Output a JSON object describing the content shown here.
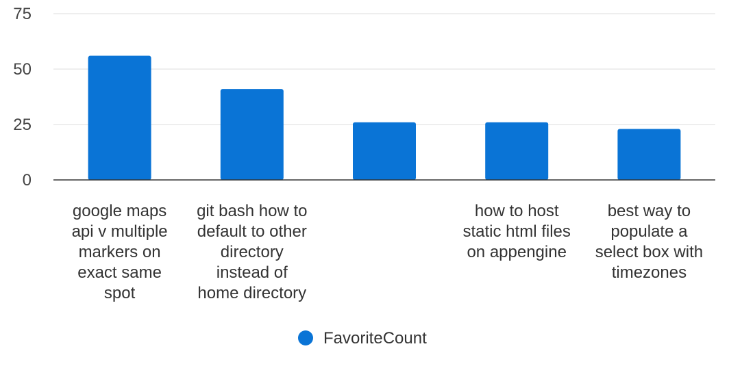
{
  "chart_data": {
    "type": "bar",
    "categories": [
      [
        "google maps",
        "api v multiple",
        "markers on",
        "exact same",
        "spot"
      ],
      [
        "git bash how to",
        "default to other",
        "directory",
        "instead of",
        "home directory"
      ],
      [],
      [
        "how to host",
        "static html files",
        "on appengine"
      ],
      [
        "best way to",
        "populate a",
        "select box with",
        "timezones"
      ]
    ],
    "series": [
      {
        "name": "FavoriteCount",
        "values": [
          56,
          41,
          26,
          26,
          23
        ]
      }
    ],
    "y_ticks": [
      "0",
      "25",
      "50",
      "75"
    ],
    "ylim": [
      0,
      75
    ],
    "grid": true,
    "legend": "bottom-center",
    "colors": {
      "bar": "#0a74d6",
      "grid": "#dddddd",
      "axis": "#333333"
    }
  }
}
